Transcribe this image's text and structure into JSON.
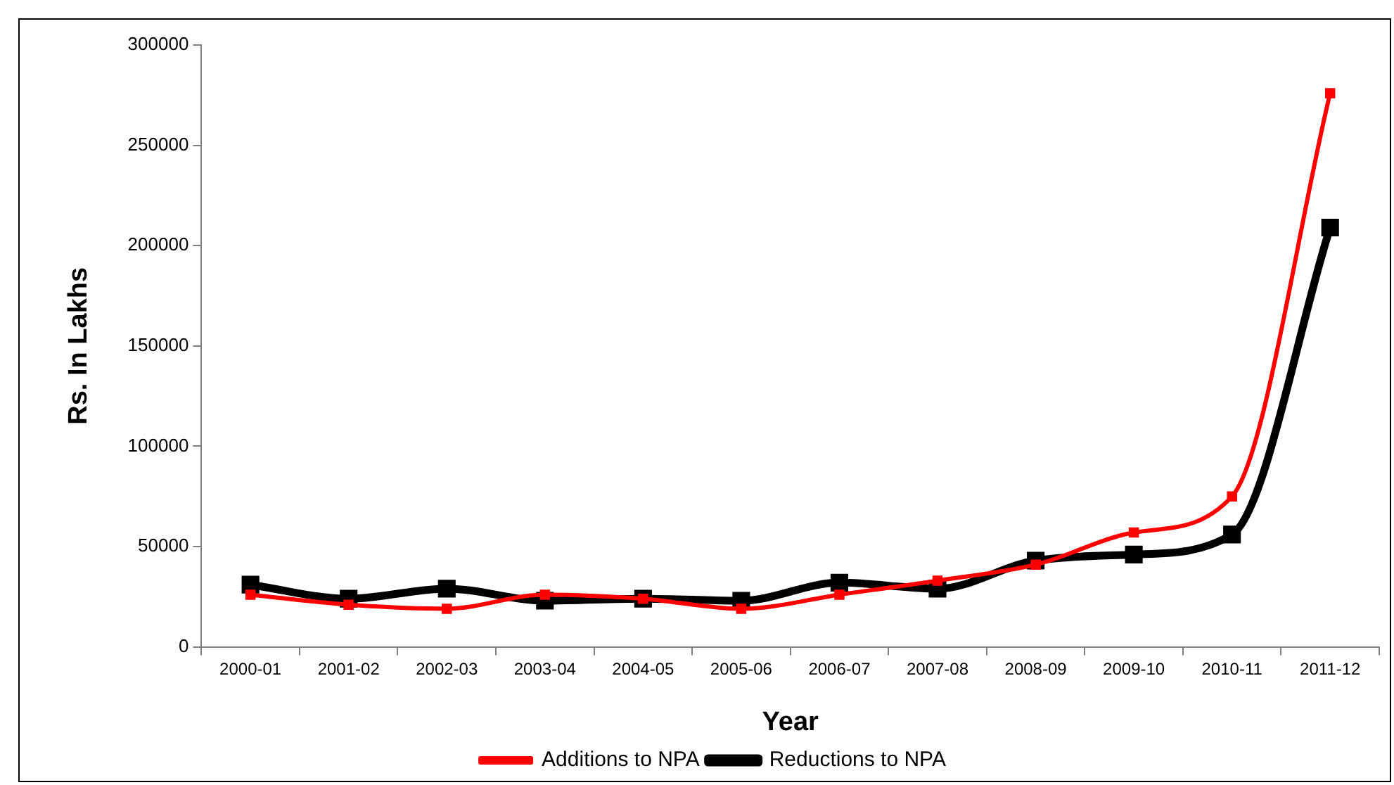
{
  "chart_data": {
    "type": "line",
    "xlabel": "Year",
    "ylabel": "Rs. In Lakhs",
    "categories": [
      "2000-01",
      "2001-02",
      "2002-03",
      "2003-04",
      "2004-05",
      "2005-06",
      "2006-07",
      "2007-08",
      "2008-09",
      "2009-10",
      "2010-11",
      "2011-12"
    ],
    "series": [
      {
        "name": "Additions to NPA",
        "color": "#ff0000",
        "values": [
          26000,
          21000,
          19000,
          26000,
          24000,
          19000,
          26000,
          33000,
          41000,
          57000,
          75000,
          276000
        ]
      },
      {
        "name": "Reductions to NPA",
        "color": "#000000",
        "values": [
          31000,
          24000,
          29000,
          23000,
          24000,
          23000,
          32000,
          29000,
          43000,
          46000,
          56000,
          209000
        ]
      }
    ],
    "ylim": [
      0,
      300000
    ],
    "yticks": [
      0,
      50000,
      100000,
      150000,
      200000,
      250000,
      300000
    ],
    "grid": false,
    "legend": "bottom",
    "marker": "square"
  }
}
